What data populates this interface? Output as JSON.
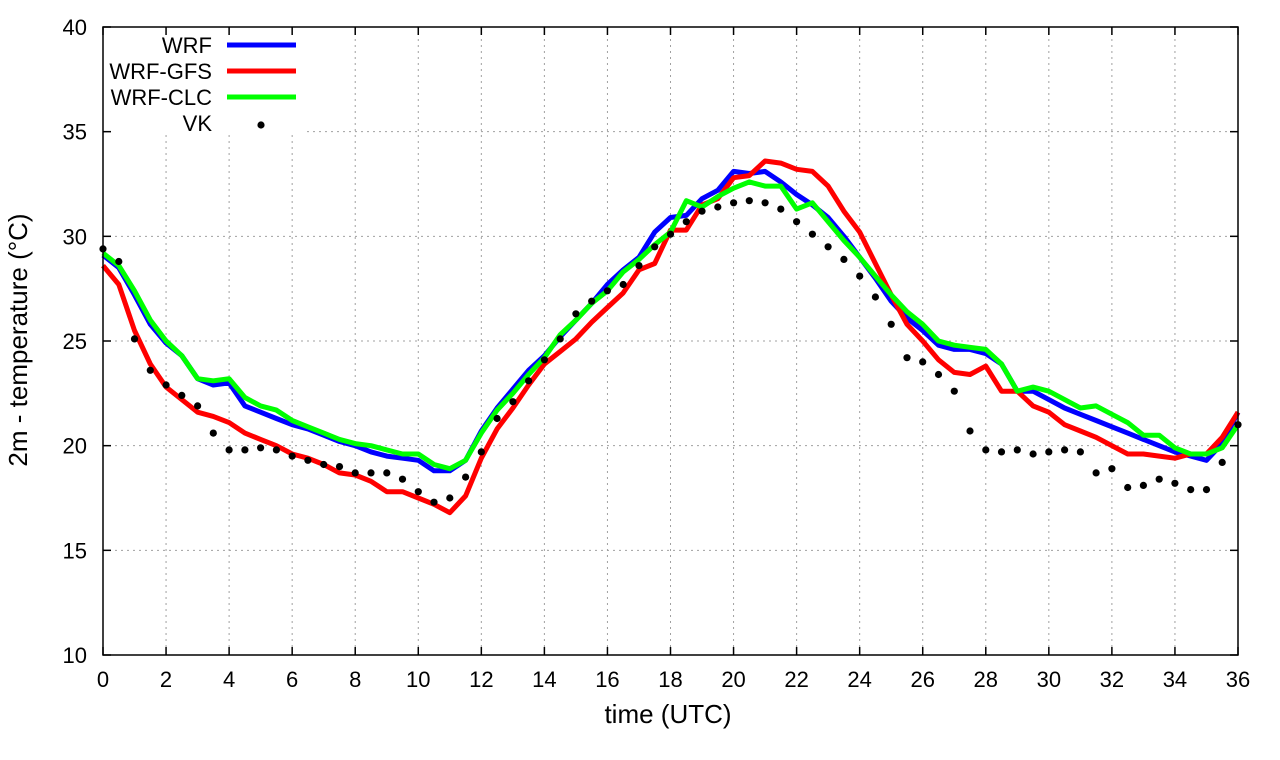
{
  "chart_data": {
    "type": "line",
    "xlabel": "time (UTC)",
    "ylabel": "2m - temperature (°C)",
    "xlim": [
      0,
      36
    ],
    "ylim": [
      10,
      40
    ],
    "xticks": [
      0,
      2,
      4,
      6,
      8,
      10,
      12,
      14,
      16,
      18,
      20,
      22,
      24,
      26,
      28,
      30,
      32,
      34,
      36
    ],
    "yticks": [
      10,
      15,
      20,
      25,
      30,
      35,
      40
    ],
    "grid": true,
    "legend_position": "top-left",
    "series": [
      {
        "name": "WRF",
        "color": "#0000ff",
        "style": "line",
        "points": [
          [
            0,
            29.1
          ],
          [
            0.5,
            28.5
          ],
          [
            1,
            27.2
          ],
          [
            1.5,
            25.8
          ],
          [
            2,
            24.9
          ],
          [
            2.5,
            24.3
          ],
          [
            3,
            23.2
          ],
          [
            3.5,
            22.9
          ],
          [
            4,
            23.0
          ],
          [
            4.5,
            21.9
          ],
          [
            5,
            21.6
          ],
          [
            5.5,
            21.3
          ],
          [
            6,
            21.0
          ],
          [
            6.5,
            20.8
          ],
          [
            7,
            20.5
          ],
          [
            7.5,
            20.2
          ],
          [
            8,
            20.0
          ],
          [
            8.5,
            19.7
          ],
          [
            9,
            19.5
          ],
          [
            9.5,
            19.4
          ],
          [
            10,
            19.3
          ],
          [
            10.5,
            18.8
          ],
          [
            11,
            18.8
          ],
          [
            11.5,
            19.3
          ],
          [
            12,
            20.7
          ],
          [
            12.5,
            21.8
          ],
          [
            13,
            22.7
          ],
          [
            13.5,
            23.6
          ],
          [
            14,
            24.3
          ],
          [
            14.5,
            25.2
          ],
          [
            15,
            26.0
          ],
          [
            15.5,
            26.8
          ],
          [
            16,
            27.7
          ],
          [
            16.5,
            28.4
          ],
          [
            17,
            29.0
          ],
          [
            17.5,
            30.2
          ],
          [
            18,
            30.9
          ],
          [
            18.5,
            31.0
          ],
          [
            19,
            31.8
          ],
          [
            19.5,
            32.2
          ],
          [
            20,
            33.1
          ],
          [
            20.5,
            33.0
          ],
          [
            21,
            33.1
          ],
          [
            21.5,
            32.6
          ],
          [
            22,
            32.0
          ],
          [
            22.5,
            31.5
          ],
          [
            23,
            30.9
          ],
          [
            23.5,
            30.0
          ],
          [
            24,
            29.0
          ],
          [
            24.5,
            28.0
          ],
          [
            25,
            26.9
          ],
          [
            25.5,
            26.1
          ],
          [
            26,
            25.5
          ],
          [
            26.5,
            24.8
          ],
          [
            27,
            24.6
          ],
          [
            27.5,
            24.6
          ],
          [
            28,
            24.4
          ],
          [
            28.5,
            23.9
          ],
          [
            29,
            22.6
          ],
          [
            29.5,
            22.6
          ],
          [
            30,
            22.2
          ],
          [
            30.5,
            21.8
          ],
          [
            31,
            21.5
          ],
          [
            31.5,
            21.2
          ],
          [
            32,
            20.9
          ],
          [
            32.5,
            20.6
          ],
          [
            33,
            20.3
          ],
          [
            33.5,
            20.0
          ],
          [
            34,
            19.7
          ],
          [
            34.5,
            19.5
          ],
          [
            35,
            19.3
          ],
          [
            35.5,
            20.1
          ],
          [
            36,
            21.6
          ]
        ]
      },
      {
        "name": "WRF-GFS",
        "color": "#ff0000",
        "style": "line",
        "points": [
          [
            0,
            28.6
          ],
          [
            0.5,
            27.7
          ],
          [
            1,
            25.5
          ],
          [
            1.5,
            23.9
          ],
          [
            2,
            22.8
          ],
          [
            2.5,
            22.2
          ],
          [
            3,
            21.6
          ],
          [
            3.5,
            21.4
          ],
          [
            4,
            21.1
          ],
          [
            4.5,
            20.6
          ],
          [
            5,
            20.3
          ],
          [
            5.5,
            20.0
          ],
          [
            6,
            19.6
          ],
          [
            6.5,
            19.4
          ],
          [
            7,
            19.1
          ],
          [
            7.5,
            18.7
          ],
          [
            8,
            18.6
          ],
          [
            8.5,
            18.3
          ],
          [
            9,
            17.8
          ],
          [
            9.5,
            17.8
          ],
          [
            10,
            17.5
          ],
          [
            10.5,
            17.2
          ],
          [
            11,
            16.8
          ],
          [
            11.5,
            17.6
          ],
          [
            12,
            19.4
          ],
          [
            12.5,
            20.8
          ],
          [
            13,
            21.8
          ],
          [
            13.5,
            22.9
          ],
          [
            14,
            23.9
          ],
          [
            14.5,
            24.5
          ],
          [
            15,
            25.1
          ],
          [
            15.5,
            25.9
          ],
          [
            16,
            26.6
          ],
          [
            16.5,
            27.3
          ],
          [
            17,
            28.4
          ],
          [
            17.5,
            28.7
          ],
          [
            18,
            30.3
          ],
          [
            18.5,
            30.3
          ],
          [
            19,
            31.5
          ],
          [
            19.5,
            31.8
          ],
          [
            20,
            32.8
          ],
          [
            20.5,
            32.9
          ],
          [
            21,
            33.6
          ],
          [
            21.5,
            33.5
          ],
          [
            22,
            33.2
          ],
          [
            22.5,
            33.1
          ],
          [
            23,
            32.4
          ],
          [
            23.5,
            31.2
          ],
          [
            24,
            30.2
          ],
          [
            24.5,
            28.7
          ],
          [
            25,
            27.2
          ],
          [
            25.5,
            25.8
          ],
          [
            26,
            25.0
          ],
          [
            26.5,
            24.1
          ],
          [
            27,
            23.5
          ],
          [
            27.5,
            23.4
          ],
          [
            28,
            23.8
          ],
          [
            28.5,
            22.6
          ],
          [
            29,
            22.6
          ],
          [
            29.5,
            21.9
          ],
          [
            30,
            21.6
          ],
          [
            30.5,
            21.0
          ],
          [
            31,
            20.7
          ],
          [
            31.5,
            20.4
          ],
          [
            32,
            20.0
          ],
          [
            32.5,
            19.6
          ],
          [
            33,
            19.6
          ],
          [
            33.5,
            19.5
          ],
          [
            34,
            19.4
          ],
          [
            34.5,
            19.6
          ],
          [
            35,
            19.6
          ],
          [
            35.5,
            20.4
          ],
          [
            36,
            21.6
          ]
        ]
      },
      {
        "name": "WRF-CLC",
        "color": "#00ff00",
        "style": "line",
        "points": [
          [
            0,
            29.2
          ],
          [
            0.5,
            28.6
          ],
          [
            1,
            27.4
          ],
          [
            1.5,
            26.0
          ],
          [
            2,
            25.0
          ],
          [
            2.5,
            24.3
          ],
          [
            3,
            23.2
          ],
          [
            3.5,
            23.1
          ],
          [
            4,
            23.2
          ],
          [
            4.5,
            22.3
          ],
          [
            5,
            21.9
          ],
          [
            5.5,
            21.7
          ],
          [
            6,
            21.2
          ],
          [
            6.5,
            20.9
          ],
          [
            7,
            20.6
          ],
          [
            7.5,
            20.3
          ],
          [
            8,
            20.1
          ],
          [
            8.5,
            20.0
          ],
          [
            9,
            19.8
          ],
          [
            9.5,
            19.6
          ],
          [
            10,
            19.6
          ],
          [
            10.5,
            19.1
          ],
          [
            11,
            18.9
          ],
          [
            11.5,
            19.3
          ],
          [
            12,
            20.6
          ],
          [
            12.5,
            21.7
          ],
          [
            13,
            22.5
          ],
          [
            13.5,
            23.4
          ],
          [
            14,
            24.2
          ],
          [
            14.5,
            25.3
          ],
          [
            15,
            26.0
          ],
          [
            15.5,
            26.8
          ],
          [
            16,
            27.4
          ],
          [
            16.5,
            28.3
          ],
          [
            17,
            28.9
          ],
          [
            17.5,
            29.6
          ],
          [
            18,
            30.2
          ],
          [
            18.5,
            31.7
          ],
          [
            19,
            31.4
          ],
          [
            19.5,
            31.9
          ],
          [
            20,
            32.3
          ],
          [
            20.5,
            32.6
          ],
          [
            21,
            32.4
          ],
          [
            21.5,
            32.4
          ],
          [
            22,
            31.3
          ],
          [
            22.5,
            31.6
          ],
          [
            23,
            30.7
          ],
          [
            23.5,
            29.8
          ],
          [
            24,
            29.0
          ],
          [
            24.5,
            28.1
          ],
          [
            25,
            27.2
          ],
          [
            25.5,
            26.4
          ],
          [
            26,
            25.8
          ],
          [
            26.5,
            25.0
          ],
          [
            27,
            24.8
          ],
          [
            27.5,
            24.7
          ],
          [
            28,
            24.6
          ],
          [
            28.5,
            23.9
          ],
          [
            29,
            22.6
          ],
          [
            29.5,
            22.8
          ],
          [
            30,
            22.6
          ],
          [
            30.5,
            22.2
          ],
          [
            31,
            21.8
          ],
          [
            31.5,
            21.9
          ],
          [
            32,
            21.5
          ],
          [
            32.5,
            21.1
          ],
          [
            33,
            20.5
          ],
          [
            33.5,
            20.5
          ],
          [
            34,
            19.9
          ],
          [
            34.5,
            19.6
          ],
          [
            35,
            19.6
          ],
          [
            35.5,
            19.9
          ],
          [
            36,
            21.0
          ]
        ]
      },
      {
        "name": "VK",
        "color": "#000000",
        "style": "points",
        "points": [
          [
            0,
            29.4
          ],
          [
            0.5,
            28.8
          ],
          [
            1,
            25.1
          ],
          [
            1.5,
            23.6
          ],
          [
            2,
            22.9
          ],
          [
            2.5,
            22.4
          ],
          [
            3,
            21.9
          ],
          [
            3.5,
            20.6
          ],
          [
            4,
            19.8
          ],
          [
            4.5,
            19.8
          ],
          [
            5,
            19.9
          ],
          [
            5.5,
            19.8
          ],
          [
            6,
            19.5
          ],
          [
            6.5,
            19.3
          ],
          [
            7,
            19.1
          ],
          [
            7.5,
            19.0
          ],
          [
            8,
            18.7
          ],
          [
            8.5,
            18.7
          ],
          [
            9,
            18.7
          ],
          [
            9.5,
            18.4
          ],
          [
            10,
            17.8
          ],
          [
            10.5,
            17.3
          ],
          [
            11,
            17.5
          ],
          [
            11.5,
            18.5
          ],
          [
            12,
            19.7
          ],
          [
            12.5,
            21.3
          ],
          [
            13,
            22.1
          ],
          [
            13.5,
            23.1
          ],
          [
            14,
            24.1
          ],
          [
            14.5,
            25.1
          ],
          [
            15,
            26.3
          ],
          [
            15.5,
            26.9
          ],
          [
            16,
            27.4
          ],
          [
            16.5,
            27.7
          ],
          [
            17,
            28.6
          ],
          [
            17.5,
            29.5
          ],
          [
            18,
            30.1
          ],
          [
            18.5,
            30.7
          ],
          [
            19,
            31.2
          ],
          [
            19.5,
            31.4
          ],
          [
            20,
            31.6
          ],
          [
            20.5,
            31.7
          ],
          [
            21,
            31.6
          ],
          [
            21.5,
            31.3
          ],
          [
            22,
            30.7
          ],
          [
            22.5,
            30.1
          ],
          [
            23,
            29.5
          ],
          [
            23.5,
            28.9
          ],
          [
            24,
            28.1
          ],
          [
            24.5,
            27.1
          ],
          [
            25,
            25.8
          ],
          [
            25.5,
            24.2
          ],
          [
            26,
            24.0
          ],
          [
            26.5,
            23.4
          ],
          [
            27,
            22.6
          ],
          [
            27.5,
            20.7
          ],
          [
            28,
            19.8
          ],
          [
            28.5,
            19.7
          ],
          [
            29,
            19.8
          ],
          [
            29.5,
            19.6
          ],
          [
            30,
            19.7
          ],
          [
            30.5,
            19.8
          ],
          [
            31,
            19.7
          ],
          [
            31.5,
            18.7
          ],
          [
            32,
            18.9
          ],
          [
            32.5,
            18.0
          ],
          [
            33,
            18.1
          ],
          [
            33.5,
            18.4
          ],
          [
            34,
            18.2
          ],
          [
            34.5,
            17.9
          ],
          [
            35,
            17.9
          ],
          [
            35.5,
            19.2
          ],
          [
            36,
            21.0
          ]
        ]
      }
    ]
  }
}
